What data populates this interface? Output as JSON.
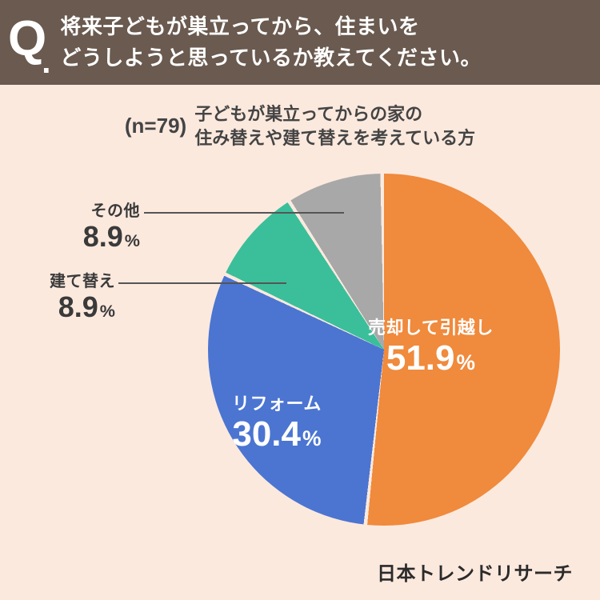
{
  "header": {
    "q_mark": "Q",
    "q_dot": ".",
    "question": "将来子どもが巣立ってから、住まいを\nどうしようと思っているか教えてください。"
  },
  "subhead": {
    "n_label": "(n=79)",
    "text": "子どもが巣立ってからの家の\n住み替えや建て替えを考えている方"
  },
  "chart": {
    "type": "pie",
    "background_color": "#fce9de",
    "start_angle_deg": 0,
    "slice_gap_deg": 1.2,
    "slices": [
      {
        "label": "売却して引越し",
        "value": 51.9,
        "color": "#f08a3c"
      },
      {
        "label": "リフォーム",
        "value": 30.4,
        "color": "#4b75d1"
      },
      {
        "label": "建て替え",
        "value": 8.9,
        "color": "#3bbf9a"
      },
      {
        "label": "その他",
        "value": 8.9,
        "color": "#a8a8a8"
      }
    ],
    "label_styles": {
      "inside_text_color": "#ffffff",
      "outside_text_color": "#3a3a3a",
      "big_value_fontsize": 44,
      "med_value_fontsize": 36,
      "title_fontsize": 22,
      "title_fontsize_small": 20
    }
  },
  "footer": {
    "brand": "日本トレンドリサーチ"
  },
  "colors": {
    "header_bg": "#6a5a4f",
    "header_text": "#ffffff",
    "page_bg": "#fce9de",
    "leader": "#555555"
  }
}
